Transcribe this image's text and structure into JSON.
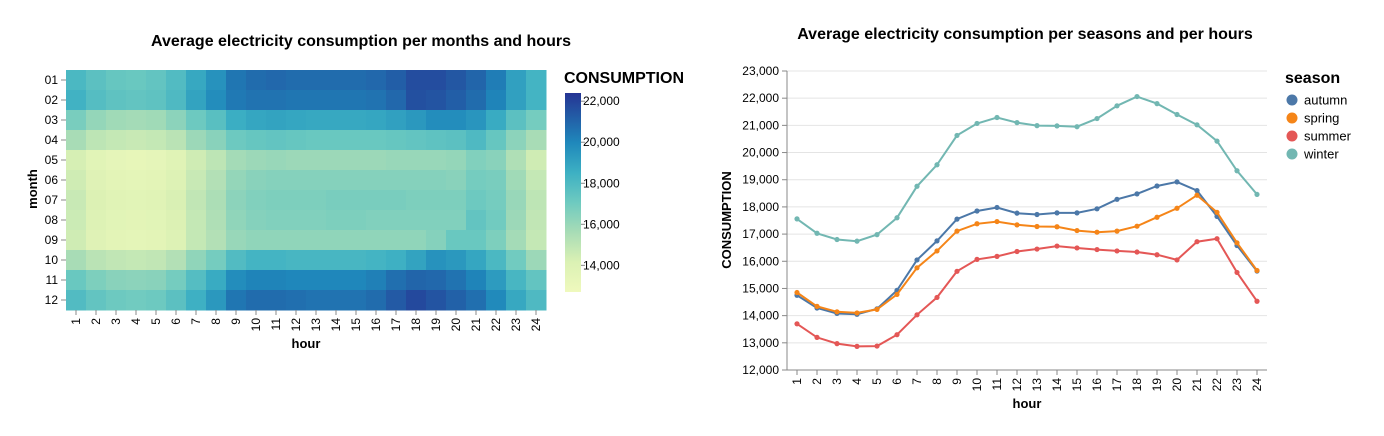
{
  "chart_data": [
    {
      "type": "heatmap",
      "title": "Average electricity consumption per months and hours",
      "xlabel": "hour",
      "ylabel": "month",
      "x": [
        "1",
        "2",
        "3",
        "4",
        "5",
        "6",
        "7",
        "8",
        "9",
        "10",
        "11",
        "12",
        "13",
        "14",
        "15",
        "16",
        "17",
        "18",
        "19",
        "20",
        "21",
        "22",
        "23",
        "24"
      ],
      "y": [
        "01",
        "02",
        "03",
        "04",
        "05",
        "06",
        "07",
        "08",
        "09",
        "10",
        "11",
        "12"
      ],
      "values": [
        [
          18100,
          17600,
          17300,
          17200,
          17400,
          17900,
          18800,
          19600,
          20500,
          20800,
          20900,
          20800,
          20800,
          20800,
          20800,
          20900,
          21200,
          21700,
          21700,
          21400,
          21000,
          20300,
          19100,
          18300
        ],
        [
          18400,
          17800,
          17500,
          17400,
          17500,
          18000,
          19000,
          19800,
          20400,
          20600,
          20600,
          20500,
          20500,
          20500,
          20500,
          20600,
          20900,
          21600,
          21500,
          21200,
          20800,
          20100,
          19100,
          18300
        ],
        [
          16800,
          16100,
          15800,
          15700,
          15800,
          16300,
          17100,
          17700,
          18600,
          18900,
          19000,
          18900,
          18800,
          18800,
          18800,
          18900,
          19100,
          19400,
          19800,
          19800,
          19500,
          18700,
          17600,
          16900
        ],
        [
          15600,
          15000,
          14800,
          14700,
          14800,
          15100,
          15900,
          16400,
          17100,
          17300,
          17400,
          17300,
          17200,
          17200,
          17200,
          17200,
          17300,
          17400,
          17500,
          17600,
          18000,
          17300,
          16300,
          15600
        ],
        [
          14300,
          13700,
          13400,
          13300,
          13400,
          13800,
          14500,
          15000,
          15700,
          15900,
          16000,
          15900,
          15900,
          15900,
          15900,
          15900,
          16000,
          16000,
          16000,
          16100,
          16600,
          16400,
          15400,
          14500
        ],
        [
          14500,
          13900,
          13600,
          13500,
          13600,
          14000,
          14700,
          15300,
          16100,
          16400,
          16500,
          16500,
          16500,
          16500,
          16500,
          16500,
          16500,
          16500,
          16500,
          16400,
          16900,
          16800,
          15800,
          14800
        ],
        [
          14700,
          14100,
          13800,
          13700,
          13800,
          14200,
          14900,
          15500,
          16300,
          16600,
          16700,
          16700,
          16700,
          16800,
          16800,
          16800,
          16800,
          16700,
          16700,
          16700,
          17100,
          16900,
          16000,
          15000
        ],
        [
          14600,
          14000,
          13700,
          13600,
          13700,
          14100,
          14800,
          15400,
          16200,
          16500,
          16600,
          16600,
          16600,
          16700,
          16700,
          16600,
          16600,
          16600,
          16600,
          16600,
          17400,
          17000,
          15900,
          14900
        ],
        [
          14500,
          13900,
          13600,
          13500,
          13600,
          14000,
          14800,
          15300,
          16000,
          16200,
          16200,
          16200,
          16200,
          16200,
          16200,
          16200,
          16200,
          16200,
          16500,
          17200,
          17200,
          16700,
          15700,
          14800
        ],
        [
          15600,
          15100,
          14900,
          14800,
          14900,
          15300,
          16200,
          16900,
          17900,
          18300,
          18300,
          18200,
          18200,
          18200,
          18200,
          18300,
          18500,
          19000,
          19600,
          19400,
          18900,
          18100,
          17000,
          15900
        ],
        [
          17200,
          16700,
          16400,
          16300,
          16400,
          16900,
          17800,
          18700,
          19800,
          20100,
          20100,
          20000,
          20000,
          20000,
          20000,
          20200,
          20700,
          21000,
          20900,
          20600,
          20100,
          19300,
          18200,
          17400
        ],
        [
          17900,
          17400,
          17100,
          17000,
          17100,
          17600,
          18500,
          19400,
          20500,
          20800,
          20800,
          20700,
          20600,
          20600,
          20600,
          20800,
          21300,
          21800,
          21500,
          21100,
          20700,
          19900,
          18800,
          18000
        ]
      ],
      "legend_title": "CONSUMPTION",
      "legend_ticks": [
        "22,000",
        "20,000",
        "18,000",
        "16,000",
        "14,000"
      ],
      "color_range": [
        12700,
        22400
      ]
    },
    {
      "type": "line",
      "title": "Average electricity consumption per seasons and per hours",
      "xlabel": "hour",
      "ylabel": "CONSUMPTION",
      "x": [
        "1",
        "2",
        "3",
        "4",
        "5",
        "6",
        "7",
        "8",
        "9",
        "10",
        "11",
        "12",
        "13",
        "14",
        "15",
        "16",
        "17",
        "18",
        "19",
        "20",
        "21",
        "22",
        "23",
        "24"
      ],
      "ylim": [
        12000,
        23000
      ],
      "yticks": [
        "12,000",
        "13,000",
        "14,000",
        "15,000",
        "16,000",
        "17,000",
        "18,000",
        "19,000",
        "20,000",
        "21,000",
        "22,000",
        "23,000"
      ],
      "legend_title": "season",
      "series": [
        {
          "name": "autumn",
          "color": "#4c78a8",
          "values": [
            14750,
            14280,
            14080,
            14050,
            14250,
            14930,
            16050,
            16750,
            17550,
            17850,
            17980,
            17770,
            17720,
            17780,
            17780,
            17930,
            18280,
            18480,
            18770,
            18920,
            18600,
            17650,
            16580,
            15640
          ]
        },
        {
          "name": "spring",
          "color": "#f58518",
          "values": [
            14850,
            14340,
            14140,
            14100,
            14230,
            14780,
            15760,
            16380,
            17110,
            17380,
            17460,
            17340,
            17280,
            17270,
            17130,
            17070,
            17110,
            17290,
            17620,
            17950,
            18430,
            17800,
            16680,
            15660
          ]
        },
        {
          "name": "summer",
          "color": "#e45756",
          "values": [
            13700,
            13200,
            12970,
            12870,
            12880,
            13300,
            14030,
            14670,
            15630,
            16070,
            16180,
            16360,
            16450,
            16560,
            16490,
            16430,
            16380,
            16340,
            16240,
            16050,
            16720,
            16830,
            15590,
            14530
          ]
        },
        {
          "name": "winter",
          "color": "#72b7b2",
          "values": [
            17560,
            17030,
            16800,
            16740,
            16980,
            17600,
            18760,
            19550,
            20630,
            21070,
            21290,
            21100,
            20990,
            20980,
            20950,
            21250,
            21720,
            22060,
            21800,
            21400,
            21020,
            20420,
            19330,
            18460
          ]
        }
      ]
    }
  ]
}
